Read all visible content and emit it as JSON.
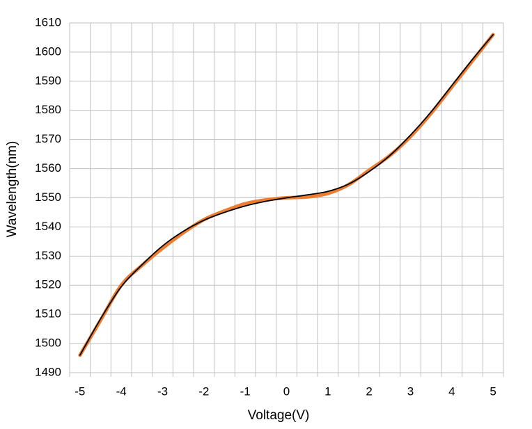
{
  "chart_data": {
    "type": "line",
    "x_label": "Voltage(V)",
    "y_label": "Wavelength(nm)",
    "categories": [
      "-5",
      null,
      "-4",
      null,
      "-3",
      null,
      "-2",
      null,
      "-1",
      null,
      "0",
      null,
      "1",
      null,
      "2",
      null,
      "3",
      null,
      "4",
      null,
      "5"
    ],
    "series": [
      {
        "color": "#ed7d31",
        "values": [
          1496,
          1508,
          1520,
          1526.8,
          1532.7,
          1538,
          1542.5,
          1545.5,
          1548,
          1549.3,
          1550,
          1550.3,
          1551.5,
          1554.5,
          1559.5,
          1564.5,
          1571,
          1579,
          1588,
          1597,
          1606
        ]
      },
      {
        "color": "#000000",
        "values": [
          1496,
          1508.5,
          1519.5,
          1527,
          1533.5,
          1538.5,
          1542.3,
          1545,
          1547.2,
          1548.8,
          1550,
          1551,
          1552.2,
          1554.7,
          1559,
          1564.5,
          1571.5,
          1579.5,
          1588.5,
          1597.5,
          1606
        ]
      }
    ],
    "ylim": [
      1490,
      1610
    ],
    "yticks": [
      1490,
      1500,
      1510,
      1520,
      1530,
      1540,
      1550,
      1560,
      1570,
      1580,
      1590,
      1600,
      1610
    ],
    "grid": true
  }
}
